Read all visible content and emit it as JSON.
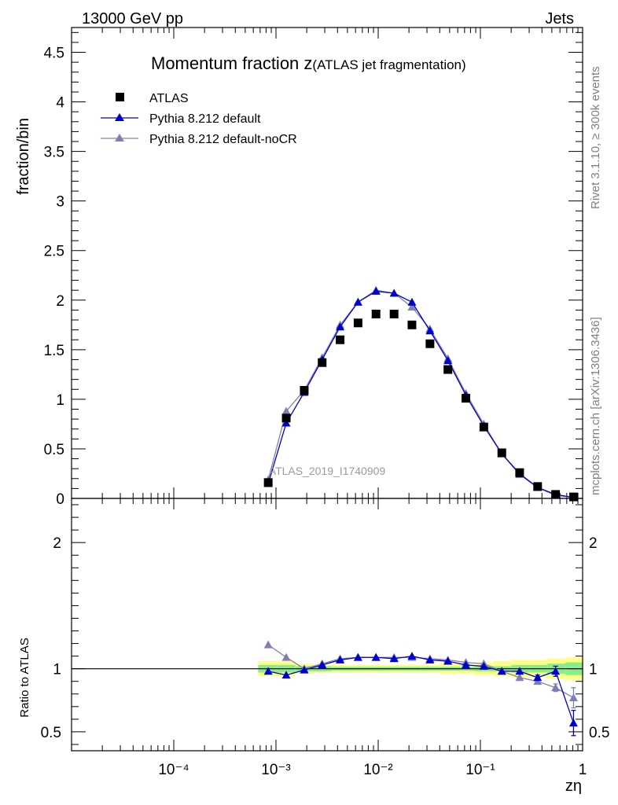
{
  "header": {
    "left": "13000 GeV pp",
    "right": "Jets"
  },
  "side": {
    "rivet": "Rivet 3.1.10, ≥ 300k events",
    "mcplots": "mcplots.cern.ch [arXiv:1306.3436]"
  },
  "watermark": "ATLAS_2019_I1740909",
  "chart_data": [
    {
      "type": "scatter",
      "panel": "main",
      "title_main": "Momentum fraction z",
      "title_sub": "(ATLAS jet fragmentation)",
      "ylabel": "fraction/bin",
      "xlabel": "zη",
      "xscale": "log",
      "xlim": [
        1e-05,
        1
      ],
      "ylim": [
        0,
        4.75
      ],
      "ytick_values": [
        0,
        0.5,
        1,
        1.5,
        2,
        2.5,
        3,
        3.5,
        4,
        4.5
      ],
      "ytick_labels": [
        "0",
        "0.5",
        "1",
        "1.5",
        "2",
        "2.5",
        "3",
        "3.5",
        "4",
        "4.5"
      ],
      "xtick_values": [
        0.0001,
        0.001,
        0.01,
        0.1,
        1
      ],
      "xtick_labels": [
        "10⁻⁴",
        "10⁻³",
        "10⁻²",
        "10⁻¹",
        "1"
      ],
      "x": [
        0.00084,
        0.00126,
        0.00189,
        0.00283,
        0.00424,
        0.00635,
        0.00952,
        0.0143,
        0.0214,
        0.0321,
        0.0481,
        0.0721,
        0.108,
        0.162,
        0.242,
        0.363,
        0.544,
        0.815
      ],
      "series": [
        {
          "name": "ATLAS",
          "marker": "square",
          "color": "#000000",
          "values": [
            0.16,
            0.81,
            1.09,
            1.37,
            1.6,
            1.77,
            1.86,
            1.86,
            1.75,
            1.56,
            1.3,
            1.01,
            0.72,
            0.46,
            0.26,
            0.12,
            0.04,
            0.015
          ]
        },
        {
          "name": "Pythia 8.212 default",
          "marker": "triangle",
          "color": "#0000cc",
          "values": [
            0.15,
            0.76,
            1.07,
            1.4,
            1.73,
            1.98,
            2.09,
            2.07,
            1.98,
            1.69,
            1.39,
            1.04,
            0.73,
            0.45,
            0.25,
            0.11,
            0.04,
            0.01
          ]
        },
        {
          "name": "Pythia 8.212 default-noCR",
          "marker": "triangle",
          "color": "#8080b0",
          "values": [
            0.19,
            0.88,
            1.09,
            1.42,
            1.75,
            1.98,
            2.1,
            2.07,
            1.93,
            1.71,
            1.41,
            1.06,
            0.75,
            0.45,
            0.24,
            0.11,
            0.03,
            0.01
          ]
        }
      ]
    },
    {
      "type": "line",
      "panel": "ratio",
      "ylabel": "Ratio to ATLAS",
      "xscale": "log",
      "xlim": [
        1e-05,
        1
      ],
      "ylim": [
        0.35,
        2.35
      ],
      "ytick_values": [
        0.5,
        1,
        2
      ],
      "ytick_labels": [
        "0.5",
        "1",
        "2"
      ],
      "reference": 1,
      "x": [
        0.00084,
        0.00126,
        0.00189,
        0.00283,
        0.00424,
        0.00635,
        0.00952,
        0.0143,
        0.0214,
        0.0321,
        0.0481,
        0.0721,
        0.108,
        0.162,
        0.242,
        0.363,
        0.544,
        0.815
      ],
      "band_edges": [
        0.00067,
        0.00103,
        0.00155,
        0.00232,
        0.00349,
        0.00523,
        0.00785,
        0.0118,
        0.0176,
        0.0264,
        0.0397,
        0.0595,
        0.0892,
        0.134,
        0.201,
        0.302,
        0.452,
        0.679,
        1.0
      ],
      "band_stat": [
        0.03,
        0.03,
        0.02,
        0.02,
        0.015,
        0.015,
        0.015,
        0.015,
        0.015,
        0.015,
        0.015,
        0.015,
        0.02,
        0.02,
        0.03,
        0.03,
        0.04,
        0.05
      ],
      "band_total": [
        0.06,
        0.06,
        0.04,
        0.03,
        0.03,
        0.03,
        0.03,
        0.03,
        0.03,
        0.03,
        0.04,
        0.04,
        0.05,
        0.06,
        0.07,
        0.07,
        0.08,
        0.09
      ],
      "series": [
        {
          "name": "Pythia 8.212 default",
          "color": "#0000cc",
          "values": [
            0.98,
            0.95,
            0.99,
            1.03,
            1.07,
            1.09,
            1.09,
            1.08,
            1.1,
            1.07,
            1.06,
            1.03,
            1.02,
            0.98,
            0.98,
            0.93,
            0.98,
            0.57
          ],
          "err": [
            0,
            0,
            0,
            0,
            0,
            0,
            0,
            0,
            0,
            0,
            0,
            0,
            0,
            0,
            0,
            0.02,
            0.04,
            0.1
          ]
        },
        {
          "name": "Pythia 8.212 default-noCR",
          "color": "#8080b0",
          "values": [
            1.19,
            1.09,
            1.0,
            1.04,
            1.08,
            1.09,
            1.09,
            1.09,
            1.09,
            1.08,
            1.07,
            1.05,
            1.04,
            0.98,
            0.93,
            0.9,
            0.85,
            0.77
          ],
          "err": [
            0,
            0,
            0,
            0,
            0,
            0,
            0,
            0,
            0,
            0,
            0,
            0,
            0,
            0,
            0,
            0.02,
            0.03,
            0.08
          ]
        }
      ]
    }
  ]
}
